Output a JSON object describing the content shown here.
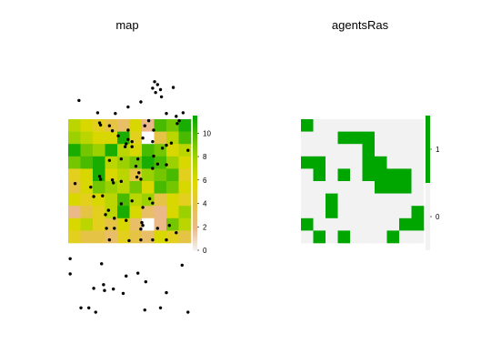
{
  "chart_data": [
    {
      "type": "heatmap",
      "title": "map",
      "grid": {
        "rows": 10,
        "cols": 10
      },
      "cells": [
        [
          7,
          6,
          5,
          4,
          3,
          6,
          2,
          10,
          9,
          11
        ],
        [
          8,
          7,
          6,
          6,
          11,
          5,
          null,
          4,
          7,
          10
        ],
        [
          11,
          9,
          8,
          11,
          7,
          6,
          10,
          9,
          6,
          7
        ],
        [
          9,
          10,
          11,
          7,
          8,
          9,
          11,
          10,
          8,
          6
        ],
        [
          5,
          6,
          11,
          6,
          7,
          4,
          8,
          9,
          10,
          5
        ],
        [
          4,
          6,
          9,
          8,
          7,
          9,
          6,
          10,
          9,
          6
        ],
        [
          6,
          5,
          6,
          7,
          10,
          7,
          8,
          4,
          6,
          5
        ],
        [
          2,
          4,
          5,
          7,
          11,
          6,
          3,
          2,
          6,
          8
        ],
        [
          6,
          7,
          5,
          4,
          6,
          3,
          null,
          2,
          9,
          7
        ],
        [
          5,
          4,
          4,
          3,
          5,
          4,
          3,
          6,
          5,
          4
        ]
      ],
      "legend_ticks": [
        0,
        2,
        4,
        6,
        8,
        10
      ],
      "legend_range": [
        0,
        11.5
      ],
      "colors": [
        "#f2f2f2",
        "#ebb88a",
        "#e6c24c",
        "#e0d800",
        "#a8d400",
        "#5cc000",
        "#00a600"
      ],
      "points": [
        [
          1.1,
          20.3
        ],
        [
          3.0,
          18.6
        ],
        [
          3.2,
          17.2
        ],
        [
          3.3,
          16.9
        ],
        [
          4.2,
          16.8
        ],
        [
          4.8,
          18.5
        ],
        [
          4.5,
          16.1
        ],
        [
          6.1,
          19.4
        ],
        [
          6.1,
          16.2
        ],
        [
          5.1,
          15.4
        ],
        [
          6.1,
          14.9
        ],
        [
          6.5,
          14.6
        ],
        [
          5.9,
          14.3
        ],
        [
          5.8,
          13.9
        ],
        [
          6.5,
          13.9
        ],
        [
          8.8,
          22.9
        ],
        [
          9.1,
          22.5
        ],
        [
          8.6,
          22.0
        ],
        [
          8.9,
          21.4
        ],
        [
          9.4,
          21.8
        ],
        [
          9.5,
          20.8
        ],
        [
          7.4,
          20.1
        ],
        [
          10.7,
          22.1
        ],
        [
          10.0,
          18.5
        ],
        [
          11.0,
          18.1
        ],
        [
          11.7,
          18.6
        ],
        [
          8.2,
          17.5
        ],
        [
          7.8,
          16.8
        ],
        [
          8.7,
          16.2
        ],
        [
          11.3,
          17.5
        ],
        [
          11.1,
          17.1
        ],
        [
          7.6,
          15.1
        ],
        [
          8.6,
          14.6
        ],
        [
          10.0,
          14.1
        ],
        [
          10.5,
          14.4
        ],
        [
          9.6,
          13.7
        ],
        [
          12.2,
          13.4
        ],
        [
          4.2,
          12.0
        ],
        [
          5.4,
          12.2
        ],
        [
          7.1,
          12.2
        ],
        [
          6.9,
          11.2
        ],
        [
          8.7,
          12.6
        ],
        [
          7.0,
          9.7
        ],
        [
          8.6,
          10.9
        ],
        [
          9.1,
          11.5
        ],
        [
          10.0,
          11.4
        ],
        [
          7.2,
          10.3
        ],
        [
          3.2,
          9.8
        ],
        [
          3.3,
          9.4
        ],
        [
          4.5,
          9.3
        ],
        [
          5.4,
          9.1
        ],
        [
          0.7,
          8.8
        ],
        [
          2.3,
          8.3
        ],
        [
          4.6,
          8.9
        ],
        [
          7.4,
          9.4
        ],
        [
          2.6,
          7.0
        ],
        [
          3.5,
          7.1
        ],
        [
          5.4,
          6.0
        ],
        [
          6.5,
          6.4
        ],
        [
          8.3,
          6.7
        ],
        [
          8.6,
          6.1
        ],
        [
          7.6,
          5.5
        ],
        [
          3.8,
          4.5
        ],
        [
          4.1,
          5.1
        ],
        [
          4.7,
          4.0
        ],
        [
          5.9,
          3.7
        ],
        [
          4.7,
          2.6
        ],
        [
          3.9,
          2.6
        ],
        [
          7.5,
          3.4
        ],
        [
          7.6,
          3.0
        ],
        [
          7.4,
          2.5
        ],
        [
          9.1,
          2.6
        ],
        [
          10.3,
          3.0
        ],
        [
          4.2,
          1.0
        ],
        [
          6.2,
          0.9
        ],
        [
          7.4,
          1.0
        ],
        [
          8.6,
          1.0
        ],
        [
          10.0,
          1.0
        ],
        [
          11.0,
          2.0
        ],
        [
          0.2,
          -1.6
        ],
        [
          0.2,
          -3.7
        ],
        [
          3.4,
          -2.3
        ],
        [
          3.6,
          -5.2
        ],
        [
          3.7,
          -6.0
        ],
        [
          4.6,
          -5.8
        ],
        [
          5.6,
          -6.4
        ],
        [
          5.9,
          -4.0
        ],
        [
          2.6,
          -5.7
        ],
        [
          2.1,
          -8.4
        ],
        [
          1.3,
          -8.4
        ],
        [
          2.8,
          -9.0
        ],
        [
          7.1,
          -3.6
        ],
        [
          7.8,
          -8.7
        ],
        [
          9.4,
          -8.4
        ],
        [
          10.0,
          -6.3
        ],
        [
          11.6,
          -2.5
        ],
        [
          7.9,
          -4.8
        ],
        [
          12.2,
          -9.0
        ]
      ],
      "point_xlim": [
        0,
        12.5
      ],
      "point_ylim": [
        -9.5,
        23.5
      ]
    },
    {
      "type": "heatmap",
      "title": "agentsRas",
      "grid": {
        "rows": 10,
        "cols": 10
      },
      "cells": [
        [
          1,
          0,
          0,
          0,
          0,
          0,
          0,
          0,
          0,
          0
        ],
        [
          0,
          0,
          0,
          1,
          1,
          1,
          0,
          0,
          0,
          0
        ],
        [
          0,
          0,
          0,
          0,
          0,
          1,
          0,
          0,
          0,
          0
        ],
        [
          1,
          1,
          0,
          0,
          0,
          1,
          1,
          0,
          0,
          0
        ],
        [
          0,
          1,
          0,
          1,
          0,
          1,
          1,
          1,
          1,
          0
        ],
        [
          0,
          0,
          0,
          0,
          0,
          0,
          1,
          1,
          1,
          0
        ],
        [
          0,
          0,
          1,
          0,
          0,
          0,
          0,
          0,
          0,
          0
        ],
        [
          0,
          0,
          1,
          0,
          0,
          0,
          0,
          0,
          0,
          1
        ],
        [
          1,
          0,
          0,
          0,
          0,
          0,
          0,
          0,
          1,
          1
        ],
        [
          0,
          1,
          0,
          1,
          0,
          0,
          0,
          1,
          0,
          0
        ]
      ],
      "legend_ticks": [
        0,
        1
      ],
      "legend_range": [
        -0.5,
        1.5
      ],
      "colors": [
        "#f2f2f2",
        "#00a600"
      ]
    }
  ]
}
